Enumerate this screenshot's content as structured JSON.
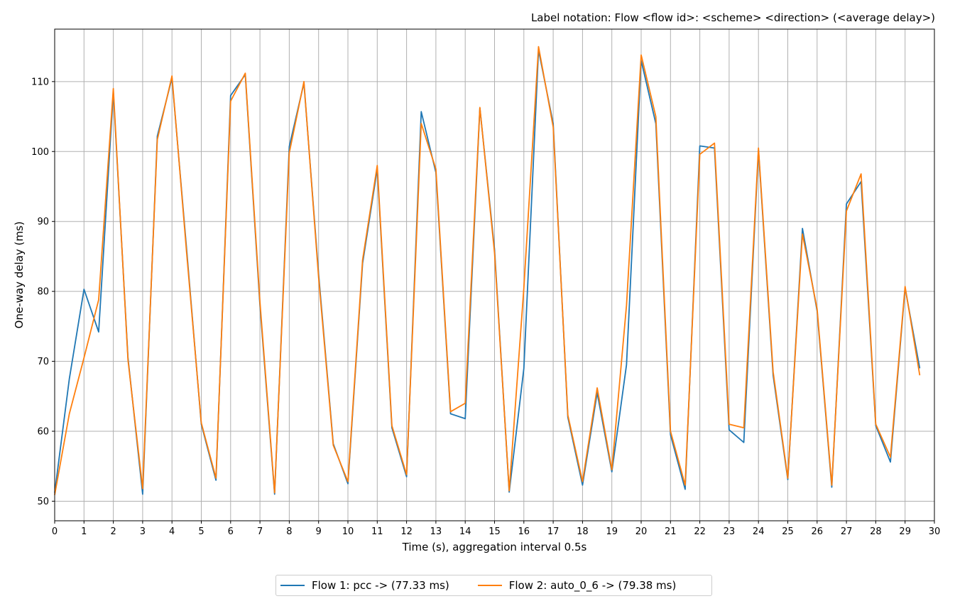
{
  "chart_data": {
    "type": "line",
    "title": "",
    "annotation": "Label notation: Flow <flow id>: <scheme> <direction> (<average delay>)",
    "xlabel": "Time (s), aggregation interval 0.5s",
    "ylabel": "One-way delay (ms)",
    "xlim": [
      0,
      30
    ],
    "ylim": [
      47.2,
      117.5
    ],
    "xticks": [
      0,
      1,
      2,
      3,
      4,
      5,
      6,
      7,
      8,
      9,
      10,
      11,
      12,
      13,
      14,
      15,
      16,
      17,
      18,
      19,
      20,
      21,
      22,
      23,
      24,
      25,
      26,
      27,
      28,
      29,
      30
    ],
    "yticks": [
      50,
      60,
      70,
      80,
      90,
      100,
      110
    ],
    "grid": true,
    "legend_position": "bottom-center",
    "x": [
      0,
      0.5,
      1,
      1.5,
      2,
      2.5,
      3,
      3.5,
      4,
      4.5,
      5,
      5.5,
      6,
      6.5,
      7,
      7.5,
      8,
      8.5,
      9,
      9.5,
      10,
      10.5,
      11,
      11.5,
      12,
      12.5,
      13,
      13.5,
      14,
      14.5,
      15,
      15.5,
      16,
      16.5,
      17,
      17.5,
      18,
      18.5,
      19,
      19.5,
      20,
      20.5,
      21,
      21.5,
      22,
      22.5,
      23,
      23.5,
      24,
      24.5,
      25,
      25.5,
      26,
      26.5,
      27,
      27.5,
      28,
      28.5,
      29,
      29.5
    ],
    "series": [
      {
        "name": "Flow 1: pcc -> (77.33 ms)",
        "color": "#1f77b4",
        "values": [
          51.2,
          67.5,
          80.3,
          74.2,
          108.5,
          70.5,
          51.0,
          102.2,
          110.5,
          86.0,
          61.0,
          53.0,
          108.0,
          111.0,
          78.0,
          51.0,
          100.7,
          109.8,
          82.5,
          58.2,
          52.5,
          84.0,
          97.5,
          60.5,
          53.5,
          105.7,
          97.0,
          62.5,
          61.8,
          106.2,
          86.0,
          51.3,
          69.0,
          114.5,
          104.0,
          62.0,
          52.3,
          65.5,
          54.2,
          69.5,
          113.0,
          104.0,
          59.5,
          51.7,
          100.8,
          100.5,
          60.2,
          58.4,
          100.2,
          68.0,
          53.1,
          89.0,
          77.2,
          52.0,
          92.5,
          95.7,
          60.8,
          55.6,
          80.5,
          69.0
        ]
      },
      {
        "name": "Flow 2: auto_0_6 -> (79.38 ms)",
        "color": "#ff7f0e",
        "values": [
          50.9,
          62.5,
          70.5,
          78.8,
          109.0,
          70.2,
          51.8,
          101.7,
          110.8,
          85.5,
          61.2,
          53.3,
          107.2,
          111.2,
          78.5,
          51.2,
          99.8,
          110.0,
          82.0,
          58.0,
          52.8,
          84.5,
          98.0,
          60.8,
          53.8,
          104.0,
          97.5,
          62.8,
          64.0,
          106.3,
          85.5,
          51.5,
          80.5,
          115.0,
          103.5,
          62.3,
          52.8,
          66.2,
          54.5,
          78.0,
          113.8,
          105.0,
          60.0,
          52.3,
          99.6,
          101.2,
          61.0,
          60.5,
          100.5,
          68.5,
          53.3,
          88.2,
          77.5,
          52.3,
          91.5,
          96.8,
          61.0,
          56.3,
          80.7,
          68.0
        ]
      }
    ]
  }
}
